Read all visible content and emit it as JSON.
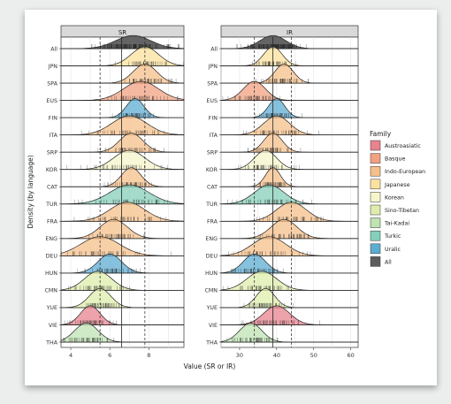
{
  "chart_data": {
    "type": "ridgeline",
    "ylabel": "Density (by language)",
    "xlabel": "Value (SR or IR)",
    "legend": {
      "title": "Family",
      "placement": "right",
      "entries": [
        {
          "name": "Austroasiatic",
          "color": "#e8838f"
        },
        {
          "name": "Basque",
          "color": "#f2a181"
        },
        {
          "name": "Indo-European",
          "color": "#f6c08b"
        },
        {
          "name": "Japanese",
          "color": "#fbe29e"
        },
        {
          "name": "Korean",
          "color": "#f6f6cb"
        },
        {
          "name": "Sino-Tibetan",
          "color": "#dfedac"
        },
        {
          "name": "Tai-Kadai",
          "color": "#bfe3b3"
        },
        {
          "name": "Turkic",
          "color": "#86cfba"
        },
        {
          "name": "Uralic",
          "color": "#5dacd2"
        },
        {
          "name": "All",
          "color": "#5c5c5c"
        }
      ]
    },
    "languages": [
      "All",
      "JPN",
      "SPA",
      "EUS",
      "FIN",
      "ITA",
      "SRP",
      "KOR",
      "CAT",
      "TUR",
      "FRA",
      "ENG",
      "DEU",
      "HUN",
      "CMN",
      "YUE",
      "VIE",
      "THA"
    ],
    "families": {
      "All": "All",
      "JPN": "Japanese",
      "SPA": "Indo-European",
      "EUS": "Basque",
      "FIN": "Uralic",
      "ITA": "Indo-European",
      "SRP": "Indo-European",
      "KOR": "Korean",
      "CAT": "Indo-European",
      "TUR": "Turkic",
      "FRA": "Indo-European",
      "ENG": "Indo-European",
      "DEU": "Indo-European",
      "HUN": "Uralic",
      "CMN": "Sino-Tibetan",
      "YUE": "Sino-Tibetan",
      "VIE": "Austroasiatic",
      "THA": "Tai-Kadai"
    },
    "panels": [
      {
        "title": "SR",
        "xlim": [
          3.5,
          9.8
        ],
        "ticks": [
          4,
          6,
          8
        ],
        "tick_labels": [
          "4",
          "6",
          "8"
        ],
        "mean_line": 6.6,
        "sd_lines": [
          5.5,
          7.8
        ],
        "grid": true,
        "modes": {
          "All": {
            "mean": 7.2,
            "sd": 0.9
          },
          "JPN": {
            "mean": 7.8,
            "sd": 0.7
          },
          "SPA": {
            "mean": 7.8,
            "sd": 0.6
          },
          "EUS": {
            "mean": 7.6,
            "sd": 0.9
          },
          "FIN": {
            "mean": 7.3,
            "sd": 0.45
          },
          "ITA": {
            "mean": 7.0,
            "sd": 0.9
          },
          "SRP": {
            "mean": 7.1,
            "sd": 0.6
          },
          "KOR": {
            "mean": 7.0,
            "sd": 0.8
          },
          "CAT": {
            "mean": 7.1,
            "sd": 0.5
          },
          "TUR": {
            "mean": 7.0,
            "sd": 1.0
          },
          "FRA": {
            "mean": 6.9,
            "sd": 0.9
          },
          "ENG": {
            "mean": 6.2,
            "sd": 0.7
          },
          "DEU": {
            "mean": 5.5,
            "sd": 1.0
          },
          "HUN": {
            "mean": 6.0,
            "sd": 0.6
          },
          "CMN": {
            "mean": 5.4,
            "sd": 0.7
          },
          "YUE": {
            "mean": 5.5,
            "sd": 0.55
          },
          "VIE": {
            "mean": 5.0,
            "sd": 0.5
          },
          "THA": {
            "mean": 4.8,
            "sd": 0.6
          }
        }
      },
      {
        "title": "IR",
        "xlim": [
          25,
          62
        ],
        "ticks": [
          30,
          40,
          50,
          60
        ],
        "tick_labels": [
          "30",
          "40",
          "50",
          "60"
        ],
        "mean_line": 39,
        "sd_lines": [
          34,
          44
        ],
        "grid": true,
        "modes": {
          "All": {
            "mean": 39,
            "sd": 3.5
          },
          "JPN": {
            "mean": 39,
            "sd": 2.5
          },
          "SPA": {
            "mean": 42,
            "sd": 2.5
          },
          "EUS": {
            "mean": 34,
            "sd": 3.0
          },
          "FIN": {
            "mean": 40,
            "sd": 2.2
          },
          "ITA": {
            "mean": 40,
            "sd": 3.5
          },
          "SRP": {
            "mean": 39,
            "sd": 2.5
          },
          "KOR": {
            "mean": 37,
            "sd": 3.0
          },
          "CAT": {
            "mean": 39,
            "sd": 2.0
          },
          "TUR": {
            "mean": 38,
            "sd": 4.0
          },
          "FRA": {
            "mean": 44,
            "sd": 4.0
          },
          "ENG": {
            "mean": 42,
            "sd": 3.5
          },
          "DEU": {
            "mean": 38,
            "sd": 4.5
          },
          "HUN": {
            "mean": 34,
            "sd": 3.0
          },
          "CMN": {
            "mean": 36,
            "sd": 4.0
          },
          "YUE": {
            "mean": 37,
            "sd": 2.5
          },
          "VIE": {
            "mean": 40,
            "sd": 3.5
          },
          "THA": {
            "mean": 33,
            "sd": 3.0
          }
        }
      }
    ]
  }
}
